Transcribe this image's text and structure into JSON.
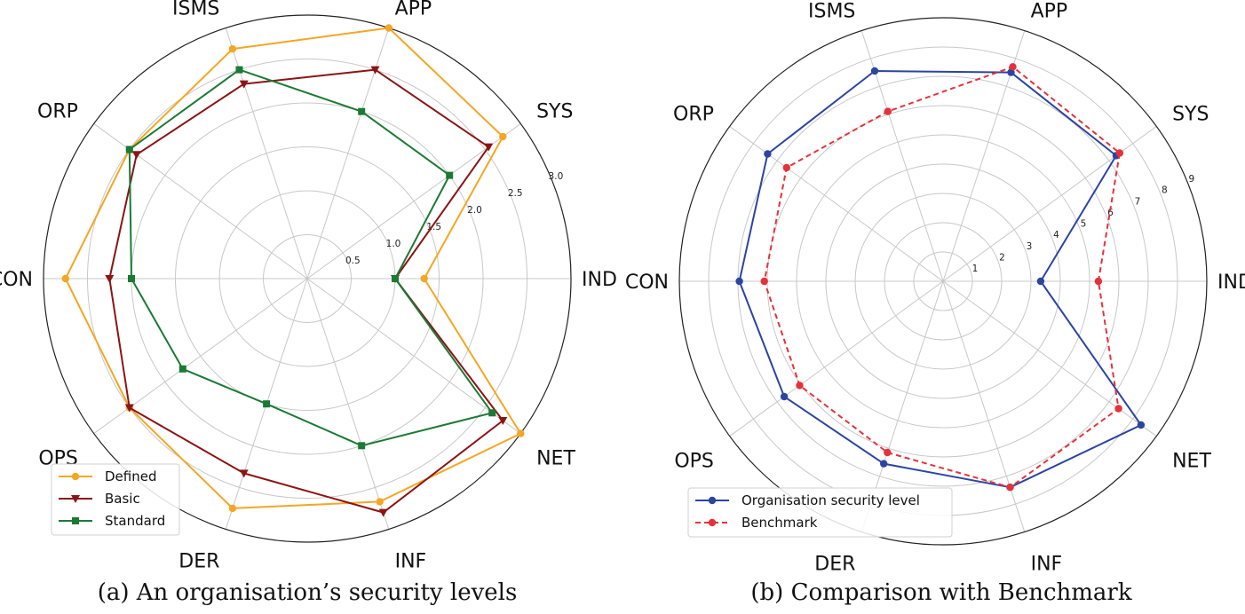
{
  "chart_data": [
    {
      "type": "radar",
      "caption": "(a) An organisation’s security levels",
      "title": "",
      "categories": [
        "IND",
        "SYS",
        "APP",
        "ISMS",
        "ORP",
        "CON",
        "OPS",
        "DER",
        "INF",
        "NET"
      ],
      "rlim": [
        0,
        3.0
      ],
      "rticks": [
        0.5,
        1.0,
        1.5,
        2.0,
        2.5,
        3.0
      ],
      "rtick_labels": [
        "0.5",
        "1.0",
        "1.5",
        "2.0",
        "2.5",
        "3.0"
      ],
      "grid": true,
      "legend_position": "lower-left",
      "series": [
        {
          "name": "Defined",
          "color": "#f5a623",
          "marker": "circle",
          "linestyle": "solid",
          "values": [
            1.33,
            2.75,
            3.0,
            2.75,
            2.5,
            2.75,
            2.5,
            2.75,
            2.67,
            3.0
          ]
        },
        {
          "name": "Basic",
          "color": "#8b1414",
          "marker": "triangle-down",
          "linestyle": "solid",
          "values": [
            1.0,
            2.55,
            2.5,
            2.33,
            2.4,
            2.25,
            2.5,
            2.33,
            2.8,
            2.75
          ]
        },
        {
          "name": "Standard",
          "color": "#1b7a34",
          "marker": "square",
          "linestyle": "solid",
          "values": [
            1.0,
            2.0,
            2.0,
            2.5,
            2.5,
            2.0,
            1.75,
            1.5,
            2.0,
            2.6
          ]
        }
      ]
    },
    {
      "type": "radar",
      "caption": "(b) Comparison with Benchmark",
      "title": "",
      "categories": [
        "IND",
        "SYS",
        "APP",
        "ISMS",
        "ORP",
        "CON",
        "OPS",
        "DER",
        "INF",
        "NET"
      ],
      "rlim": [
        0,
        9
      ],
      "rticks": [
        1,
        2,
        3,
        4,
        5,
        6,
        7,
        8,
        9
      ],
      "rtick_labels": [
        "1",
        "2",
        "3",
        "4",
        "5",
        "6",
        "7",
        "8",
        "9"
      ],
      "grid": true,
      "legend_position": "lower-left",
      "series": [
        {
          "name": "Organisation security level",
          "color": "#2b45a0",
          "marker": "circle",
          "linestyle": "solid",
          "values": [
            3.33,
            7.3,
            7.5,
            7.55,
            7.4,
            6.95,
            6.7,
            6.55,
            7.4,
            8.35
          ]
        },
        {
          "name": "Benchmark",
          "color": "#e5323a",
          "marker": "circle",
          "linestyle": "dashed",
          "values": [
            5.3,
            7.45,
            7.7,
            6.1,
            6.6,
            6.1,
            6.05,
            6.15,
            7.4,
            7.4
          ]
        }
      ]
    }
  ]
}
